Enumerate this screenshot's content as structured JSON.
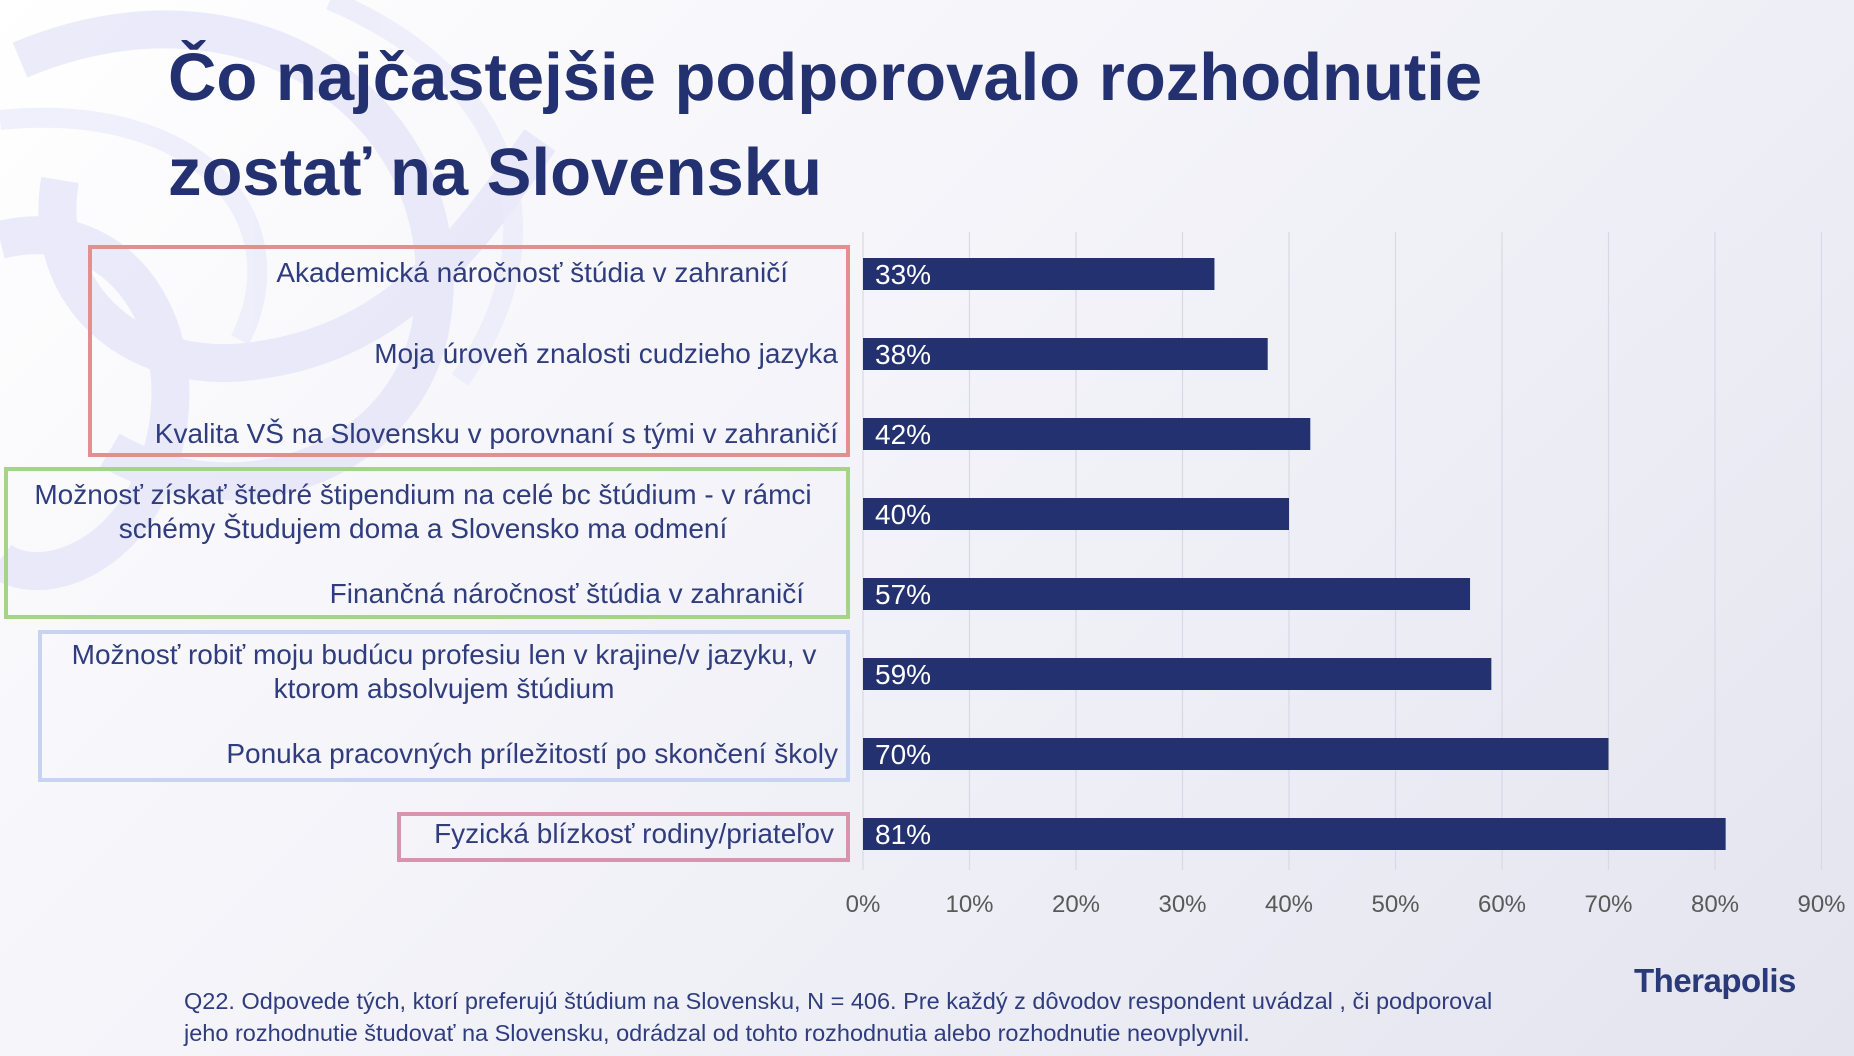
{
  "slide": {
    "title_line1": "Čo najčastejšie podporovalo rozhodnutie",
    "title_line2": "zostať na Slovensku",
    "footnote_line1": "Q22. Odpovede tých, ktorí preferujú štúdium na Slovensku, N = 406. Pre každý z dôvodov respondent uvádzal , či podporoval",
    "footnote_line2": "jeho rozhodnutie študovať na Slovensku, odrádzal od tohto rozhodnutia alebo rozhodnutie neovplyvnil.",
    "logo": "Therapolis"
  },
  "chart_data": {
    "type": "bar",
    "orientation": "horizontal",
    "categories": [
      "Akademická náročnosť štúdia v zahraničí",
      "Moja úroveň znalosti cudzieho jazyka",
      "Kvalita VŠ na Slovensku v porovnaní s tými v zahraničí",
      "Možnosť získať štedré štipendium na celé bc štúdium  - v rámci schémy Študujem doma a Slovensko ma odmení",
      "Finančná náročnosť štúdia v zahraničí",
      "Možnosť robiť moju budúcu profesiu len v krajine/v jazyku, v ktorom absolvujem štúdium",
      "Ponuka pracovných príležitostí po skončení školy",
      "Fyzická blízkosť rodiny/priateľov"
    ],
    "category_lines": [
      [
        "Akademická náročnosť štúdia v zahraničí"
      ],
      [
        "Moja úroveň znalosti cudzieho jazyka"
      ],
      [
        "Kvalita VŠ na Slovensku v porovnaní s tými v zahraničí"
      ],
      [
        "Možnosť získať štedré štipendium na celé bc štúdium  - v rámci",
        "schémy Študujem doma a Slovensko ma odmení"
      ],
      [
        "Finančná náročnosť štúdia v zahraničí"
      ],
      [
        "Možnosť robiť moju budúcu profesiu len v krajine/v jazyku, v",
        "ktorom absolvujem štúdium"
      ],
      [
        "Ponuka pracovných príležitostí po skončení školy"
      ],
      [
        "Fyzická blízkosť rodiny/priateľov"
      ]
    ],
    "values": [
      33,
      38,
      42,
      40,
      57,
      59,
      70,
      81
    ],
    "data_labels": [
      "33%",
      "38%",
      "42%",
      "40%",
      "57%",
      "59%",
      "70%",
      "81%"
    ],
    "xlim": [
      0,
      90
    ],
    "x_ticks": [
      "0%",
      "10%",
      "20%",
      "30%",
      "40%",
      "50%",
      "60%",
      "70%",
      "80%",
      "90%"
    ],
    "grid": true,
    "bar_color": "#243170",
    "groups": [
      {
        "rows": [
          0,
          1,
          2
        ],
        "color": "#e68d90"
      },
      {
        "rows": [
          3,
          4
        ],
        "color": "#a5d38a"
      },
      {
        "rows": [
          5,
          6
        ],
        "color": "#c6d3f3"
      },
      {
        "rows": [
          7
        ],
        "color": "#d794ad"
      }
    ]
  }
}
